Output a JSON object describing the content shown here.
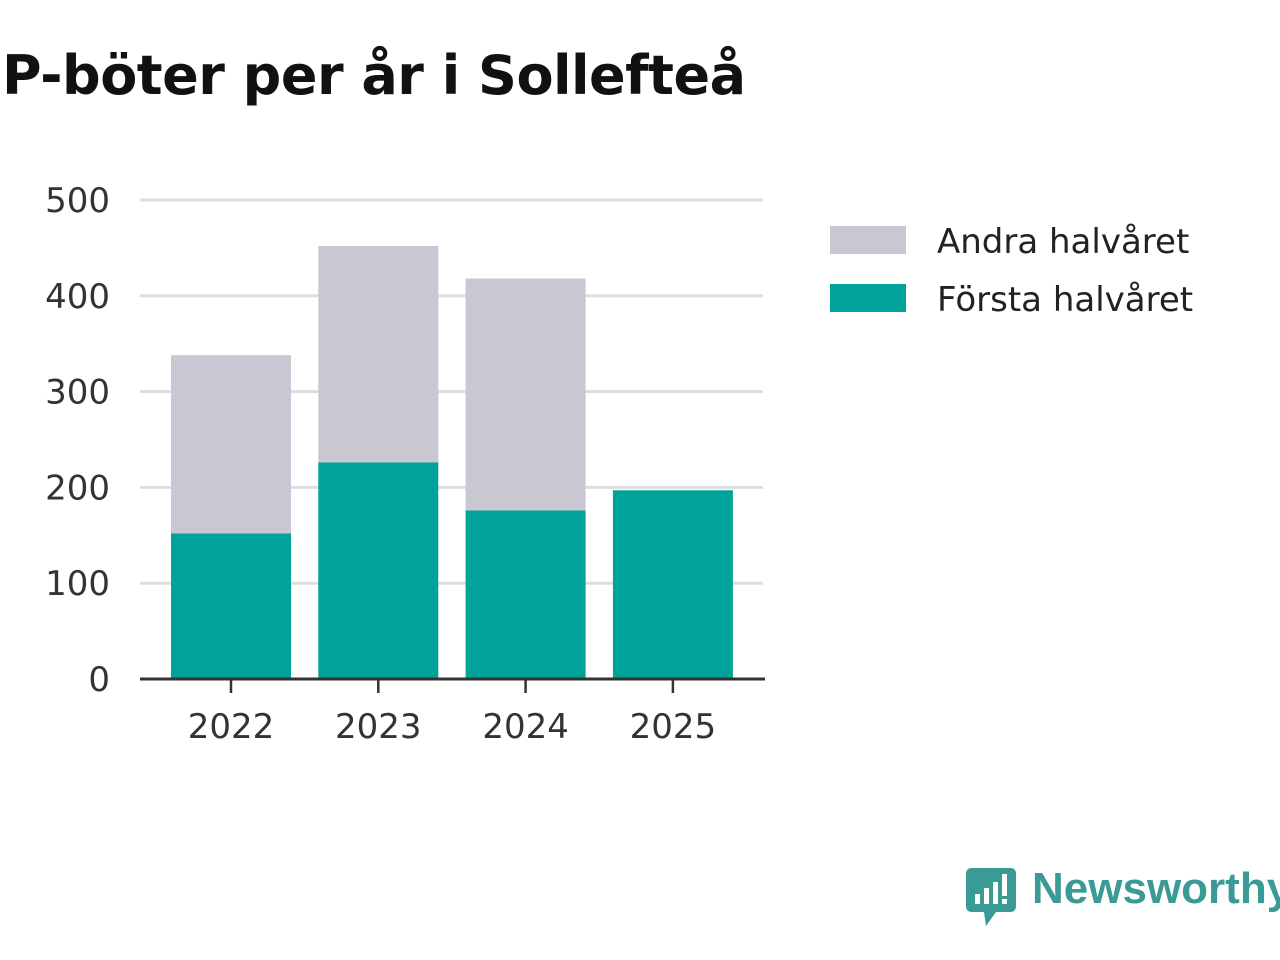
{
  "chart_data": {
    "type": "bar",
    "stacked": true,
    "title": "P-böter per år i Sollefteå",
    "xlabel": "",
    "ylabel": "",
    "categories": [
      "2022",
      "2023",
      "2024",
      "2025"
    ],
    "series": [
      {
        "name": "Första halvåret",
        "color": "#00a39a",
        "values": [
          152,
          226,
          176,
          197
        ]
      },
      {
        "name": "Andra halvåret",
        "color": "#c8c7d2",
        "values": [
          186,
          226,
          242,
          0
        ]
      }
    ],
    "ylim": [
      0,
      500
    ],
    "yticks": [
      0,
      100,
      200,
      300,
      400,
      500
    ],
    "grid": true,
    "legend": {
      "position": "right",
      "order": [
        "Andra halvåret",
        "Första halvåret"
      ]
    }
  },
  "brand": {
    "name": "Newsworthy",
    "color": "#3a9a96"
  }
}
